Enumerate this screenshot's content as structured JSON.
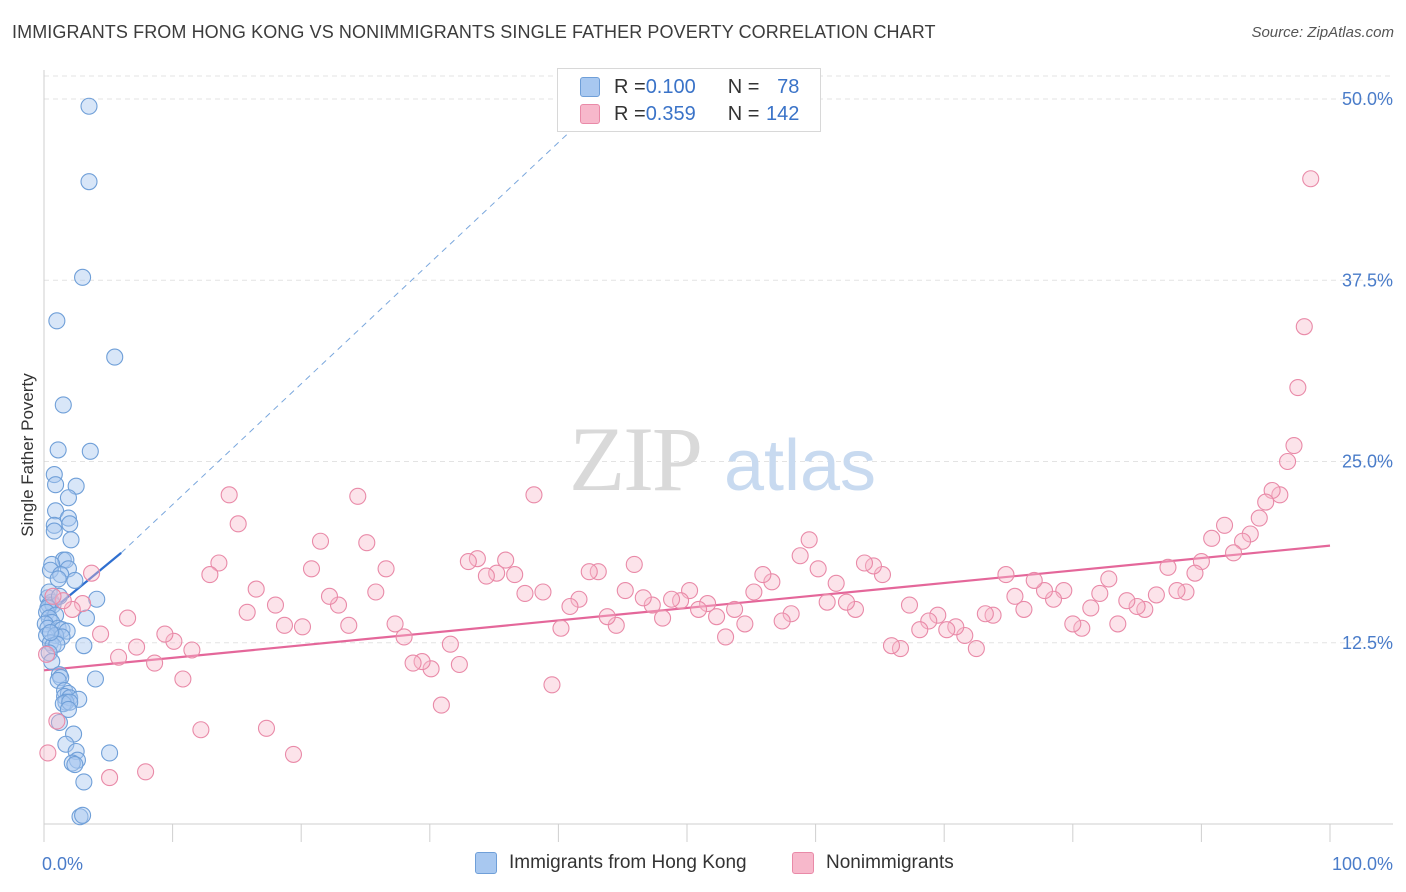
{
  "title": "IMMIGRANTS FROM HONG KONG VS NONIMMIGRANTS SINGLE FATHER POVERTY CORRELATION CHART",
  "source": "Source: ZipAtlas.com",
  "watermark": {
    "zip": "ZIP",
    "atlas": "atlas"
  },
  "legend_top": {
    "rows": [
      {
        "r_label": "R = ",
        "r_value": "0.100",
        "n_label": "N = ",
        "n_value": "78",
        "color": "#a8c8f0",
        "border": "#6f9fd8"
      },
      {
        "r_label": "R = ",
        "r_value": "0.359",
        "n_label": "N = ",
        "n_value": "142",
        "color": "#f7b8cb",
        "border": "#e98aa8"
      }
    ]
  },
  "legend_bottom": {
    "items": [
      {
        "label": "Immigrants from Hong Kong",
        "color": "#a8c8f0",
        "border": "#6f9fd8"
      },
      {
        "label": "Nonimmigrants",
        "color": "#f7b8cb",
        "border": "#e98aa8"
      }
    ]
  },
  "chart_data": {
    "type": "scatter",
    "title": "IMMIGRANTS FROM HONG KONG VS NONIMMIGRANTS SINGLE FATHER POVERTY CORRELATION CHART",
    "xlabel": "",
    "ylabel": "Single Father Poverty",
    "xlim": [
      0,
      100
    ],
    "ylim": [
      0,
      52
    ],
    "x_tick_labels": [
      "0.0%",
      "100.0%"
    ],
    "y_ticks": [
      12.5,
      25.0,
      37.5,
      50.0
    ],
    "y_tick_labels": [
      "12.5%",
      "25.0%",
      "37.5%",
      "50.0%"
    ],
    "grid": "horizontal dashed",
    "legend_position": "top-center",
    "series": [
      {
        "name": "Immigrants from Hong Kong",
        "color": "#6f9fd8",
        "fill": "rgba(168,200,240,0.45)",
        "trend": {
          "x": [
            0,
            6.0
          ],
          "y": [
            14.3,
            18.7
          ],
          "extended_to": [
            43,
            49.5
          ]
        },
        "points": [
          [
            3.5,
            49.5
          ],
          [
            3.5,
            44.3
          ],
          [
            3.0,
            37.7
          ],
          [
            1.0,
            34.7
          ],
          [
            5.5,
            32.2
          ],
          [
            1.5,
            28.9
          ],
          [
            3.6,
            25.7
          ],
          [
            1.1,
            25.8
          ],
          [
            0.8,
            24.1
          ],
          [
            2.5,
            23.3
          ],
          [
            0.9,
            23.4
          ],
          [
            1.9,
            22.5
          ],
          [
            0.9,
            21.6
          ],
          [
            1.9,
            21.1
          ],
          [
            0.8,
            20.6
          ],
          [
            2.0,
            20.7
          ],
          [
            0.8,
            20.2
          ],
          [
            1.5,
            18.2
          ],
          [
            1.7,
            18.2
          ],
          [
            0.6,
            17.9
          ],
          [
            1.9,
            17.6
          ],
          [
            0.5,
            17.5
          ],
          [
            1.3,
            17.2
          ],
          [
            2.4,
            16.8
          ],
          [
            0.3,
            15.6
          ],
          [
            0.6,
            15.3
          ],
          [
            4.1,
            15.5
          ],
          [
            0.4,
            15.1
          ],
          [
            0.7,
            15.1
          ],
          [
            0.3,
            14.9
          ],
          [
            0.2,
            14.6
          ],
          [
            0.9,
            14.4
          ],
          [
            0.4,
            14.2
          ],
          [
            3.3,
            14.2
          ],
          [
            0.6,
            13.9
          ],
          [
            0.1,
            13.8
          ],
          [
            0.3,
            13.5
          ],
          [
            1.1,
            13.5
          ],
          [
            1.4,
            13.4
          ],
          [
            1.8,
            13.3
          ],
          [
            0.2,
            13.0
          ],
          [
            0.9,
            13.0
          ],
          [
            1.4,
            12.9
          ],
          [
            0.5,
            12.5
          ],
          [
            0.7,
            12.3
          ],
          [
            1.0,
            12.4
          ],
          [
            3.1,
            12.3
          ],
          [
            0.4,
            11.8
          ],
          [
            0.6,
            11.2
          ],
          [
            1.2,
            10.3
          ],
          [
            1.3,
            10.1
          ],
          [
            1.1,
            9.9
          ],
          [
            4.0,
            10.0
          ],
          [
            1.6,
            9.2
          ],
          [
            1.9,
            9.0
          ],
          [
            1.6,
            8.8
          ],
          [
            2.0,
            8.7
          ],
          [
            2.7,
            8.6
          ],
          [
            1.7,
            8.4
          ],
          [
            1.5,
            8.3
          ],
          [
            2.0,
            8.4
          ],
          [
            1.9,
            7.9
          ],
          [
            1.2,
            7.0
          ],
          [
            2.3,
            6.2
          ],
          [
            1.7,
            5.5
          ],
          [
            2.5,
            5.0
          ],
          [
            5.1,
            4.9
          ],
          [
            2.6,
            4.4
          ],
          [
            2.2,
            4.2
          ],
          [
            2.4,
            4.1
          ],
          [
            3.1,
            2.9
          ],
          [
            2.8,
            0.5
          ],
          [
            3.0,
            0.6
          ],
          [
            1.1,
            16.9
          ],
          [
            0.4,
            16.0
          ],
          [
            0.5,
            13.2
          ],
          [
            2.1,
            19.6
          ],
          [
            1.2,
            15.7
          ]
        ]
      },
      {
        "name": "Nonimmigrants",
        "color": "#e98aa8",
        "fill": "rgba(247,184,203,0.40)",
        "trend": {
          "x": [
            0,
            100
          ],
          "y": [
            10.6,
            19.2
          ]
        },
        "points": [
          [
            98.5,
            44.5
          ],
          [
            98.0,
            34.3
          ],
          [
            97.5,
            30.1
          ],
          [
            97.2,
            26.1
          ],
          [
            96.7,
            25.0
          ],
          [
            96.1,
            22.7
          ],
          [
            95.5,
            23.0
          ],
          [
            95.0,
            22.2
          ],
          [
            94.5,
            21.1
          ],
          [
            93.8,
            20.0
          ],
          [
            93.2,
            19.5
          ],
          [
            92.5,
            18.7
          ],
          [
            91.8,
            20.6
          ],
          [
            90.8,
            19.7
          ],
          [
            90.0,
            18.1
          ],
          [
            89.5,
            17.3
          ],
          [
            88.8,
            16.0
          ],
          [
            88.1,
            16.1
          ],
          [
            87.4,
            17.7
          ],
          [
            86.5,
            15.8
          ],
          [
            85.6,
            14.8
          ],
          [
            85.0,
            15.0
          ],
          [
            84.2,
            15.4
          ],
          [
            83.5,
            13.8
          ],
          [
            82.8,
            16.9
          ],
          [
            82.1,
            15.9
          ],
          [
            81.4,
            14.9
          ],
          [
            80.7,
            13.5
          ],
          [
            80.0,
            13.8
          ],
          [
            79.3,
            16.1
          ],
          [
            78.5,
            15.5
          ],
          [
            77.8,
            16.1
          ],
          [
            77.0,
            16.8
          ],
          [
            76.2,
            14.8
          ],
          [
            75.5,
            15.7
          ],
          [
            74.8,
            17.2
          ],
          [
            73.8,
            14.4
          ],
          [
            73.2,
            14.5
          ],
          [
            72.5,
            12.1
          ],
          [
            71.6,
            13.0
          ],
          [
            70.9,
            13.6
          ],
          [
            70.2,
            13.4
          ],
          [
            69.5,
            14.4
          ],
          [
            68.8,
            14.0
          ],
          [
            68.1,
            13.4
          ],
          [
            67.3,
            15.1
          ],
          [
            66.6,
            12.1
          ],
          [
            65.9,
            12.3
          ],
          [
            65.2,
            17.2
          ],
          [
            64.5,
            17.8
          ],
          [
            63.8,
            18.0
          ],
          [
            63.1,
            14.8
          ],
          [
            62.4,
            15.3
          ],
          [
            61.6,
            16.6
          ],
          [
            60.9,
            15.3
          ],
          [
            60.2,
            17.6
          ],
          [
            59.5,
            19.6
          ],
          [
            58.8,
            18.5
          ],
          [
            58.1,
            14.5
          ],
          [
            57.4,
            14.0
          ],
          [
            56.6,
            16.7
          ],
          [
            55.9,
            17.2
          ],
          [
            55.2,
            16.0
          ],
          [
            54.5,
            13.8
          ],
          [
            53.7,
            14.8
          ],
          [
            53.0,
            12.9
          ],
          [
            52.3,
            14.3
          ],
          [
            51.6,
            15.2
          ],
          [
            50.9,
            14.8
          ],
          [
            50.2,
            16.1
          ],
          [
            49.5,
            15.4
          ],
          [
            48.8,
            15.5
          ],
          [
            48.1,
            14.2
          ],
          [
            47.3,
            15.1
          ],
          [
            46.6,
            15.6
          ],
          [
            45.9,
            17.9
          ],
          [
            45.2,
            16.1
          ],
          [
            44.5,
            13.7
          ],
          [
            43.8,
            14.3
          ],
          [
            43.1,
            17.4
          ],
          [
            42.4,
            17.4
          ],
          [
            41.6,
            15.5
          ],
          [
            40.9,
            15.0
          ],
          [
            40.2,
            13.5
          ],
          [
            39.5,
            9.6
          ],
          [
            38.8,
            16.0
          ],
          [
            38.1,
            22.7
          ],
          [
            37.4,
            15.9
          ],
          [
            36.6,
            17.2
          ],
          [
            35.9,
            18.2
          ],
          [
            35.2,
            17.3
          ],
          [
            34.4,
            17.1
          ],
          [
            33.7,
            18.3
          ],
          [
            33.0,
            18.1
          ],
          [
            32.3,
            11.0
          ],
          [
            31.6,
            12.4
          ],
          [
            30.9,
            8.2
          ],
          [
            30.1,
            10.7
          ],
          [
            29.4,
            11.2
          ],
          [
            28.7,
            11.1
          ],
          [
            28.0,
            12.9
          ],
          [
            27.3,
            13.8
          ],
          [
            26.6,
            17.6
          ],
          [
            25.8,
            16.0
          ],
          [
            25.1,
            19.4
          ],
          [
            24.4,
            22.6
          ],
          [
            23.7,
            13.7
          ],
          [
            22.9,
            15.1
          ],
          [
            22.2,
            15.7
          ],
          [
            21.5,
            19.5
          ],
          [
            20.8,
            17.6
          ],
          [
            20.1,
            13.6
          ],
          [
            19.4,
            4.8
          ],
          [
            18.7,
            13.7
          ],
          [
            18.0,
            15.1
          ],
          [
            17.3,
            6.6
          ],
          [
            16.5,
            16.2
          ],
          [
            15.8,
            14.6
          ],
          [
            15.1,
            20.7
          ],
          [
            14.4,
            22.7
          ],
          [
            13.6,
            18.0
          ],
          [
            12.9,
            17.2
          ],
          [
            12.2,
            6.5
          ],
          [
            11.5,
            12.0
          ],
          [
            10.8,
            10.0
          ],
          [
            10.1,
            12.6
          ],
          [
            9.4,
            13.1
          ],
          [
            8.6,
            11.1
          ],
          [
            7.9,
            3.6
          ],
          [
            7.2,
            12.2
          ],
          [
            6.5,
            14.2
          ],
          [
            5.8,
            11.5
          ],
          [
            5.1,
            3.2
          ],
          [
            4.4,
            13.1
          ],
          [
            3.7,
            17.3
          ],
          [
            3.0,
            15.2
          ],
          [
            2.2,
            14.8
          ],
          [
            1.5,
            15.4
          ],
          [
            1.0,
            7.1
          ],
          [
            0.7,
            15.7
          ],
          [
            0.3,
            4.9
          ],
          [
            0.2,
            11.7
          ]
        ]
      }
    ]
  }
}
